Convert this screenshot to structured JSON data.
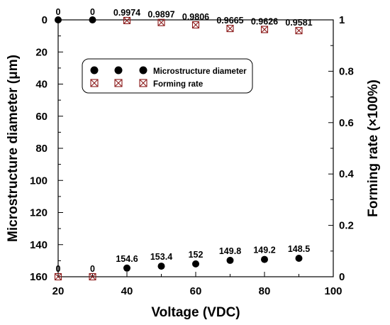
{
  "chart_data": {
    "type": "scatter",
    "xlabel": "Voltage (VDC)",
    "ylabel": "Microstructure diameter (μm)",
    "y2label": "Forming rate (×100%)",
    "xlim": [
      20,
      100
    ],
    "ylim": [
      160,
      0
    ],
    "y2lim": [
      0,
      1
    ],
    "x_ticks": [
      "20",
      "40",
      "60",
      "80",
      "100"
    ],
    "y_ticks": [
      "0",
      "20",
      "40",
      "60",
      "80",
      "100",
      "120",
      "140",
      "160"
    ],
    "y2_ticks": [
      "0",
      "0.2",
      "0.4",
      "0.6",
      "0.8",
      "1"
    ],
    "grid": false,
    "legend_position": "upper-left",
    "series": [
      {
        "name": "Microstructure diameter",
        "axis": "left",
        "marker": "filled-circle",
        "color": "#000000",
        "x": [
          20,
          30,
          40,
          50,
          60,
          70,
          80,
          90
        ],
        "y": [
          0,
          0,
          154.6,
          153.4,
          152,
          149.8,
          149.2,
          148.5
        ],
        "labels": [
          "0",
          "0",
          "154.6",
          "153.4",
          "152",
          "149.8",
          "149.2",
          "148.5"
        ]
      },
      {
        "name": "Forming rate",
        "axis": "right",
        "marker": "crossed-square",
        "color": "#8b1a1a",
        "x": [
          20,
          30,
          40,
          50,
          60,
          70,
          80,
          90
        ],
        "y": [
          0,
          0,
          0.9974,
          0.9897,
          0.9806,
          0.9665,
          0.9626,
          0.9581
        ],
        "labels": [
          "0",
          "0",
          "0.9974",
          "0.9897",
          "0.9806",
          "0.9665",
          "0.9626",
          "0.9581"
        ]
      }
    ]
  }
}
